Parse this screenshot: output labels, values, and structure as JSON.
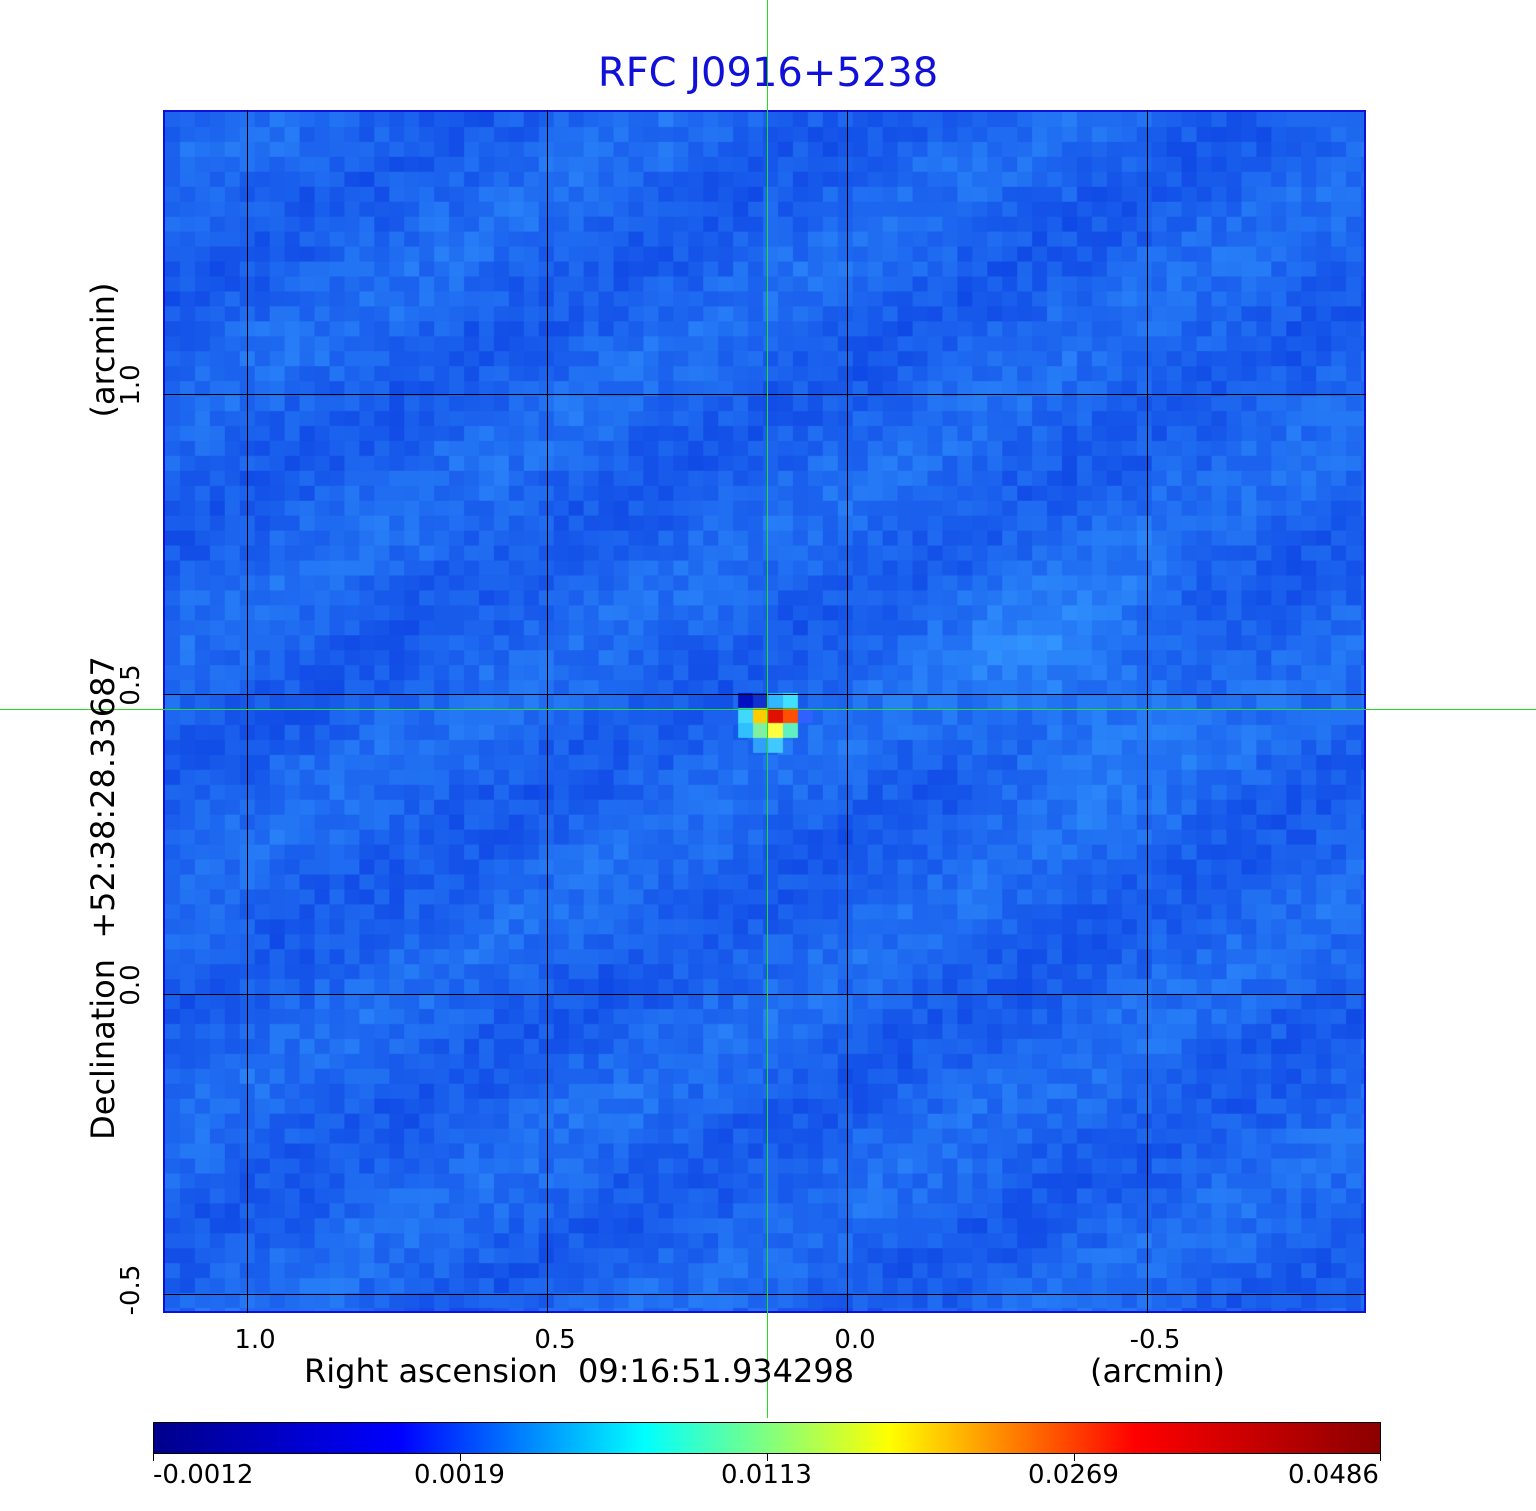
{
  "title": "RFC J0916+5238",
  "axes": {
    "ra_label": "Right ascension  09:16:51.934298",
    "ra_unit": "(arcmin)",
    "dec_label": "Declination  +52:38:28.33687",
    "dec_unit": "(arcmin)",
    "x_ticks": [
      "1.0",
      "0.5",
      "0.0",
      "-0.5"
    ],
    "y_ticks": [
      "1.0",
      "0.5",
      "0.0",
      "-0.5"
    ]
  },
  "colorbar": {
    "labels": [
      "-0.0012",
      "0.0019",
      "0.0113",
      "0.0269",
      "0.0486"
    ],
    "colors": [
      "#00008b",
      "#0000ff",
      "#00ffff",
      "#ffff00",
      "#ff0000",
      "#8b0000"
    ]
  },
  "colors": {
    "title": "#1010d8",
    "background_field": "#1a64f0",
    "crosshair": "#22dd22",
    "grid": "#000000"
  }
}
